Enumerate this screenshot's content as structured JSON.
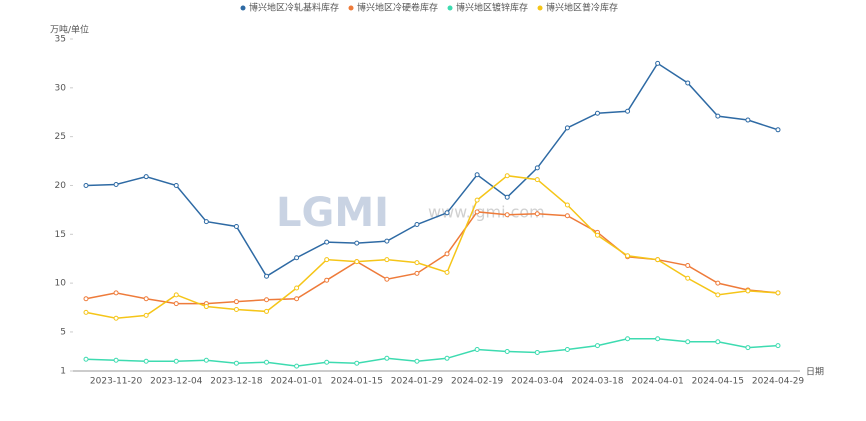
{
  "chart_data": {
    "type": "line",
    "y_label": "万吨/单位",
    "x_label": "日期",
    "watermark": "LGMI",
    "watermark_url": "www.lgmi.com",
    "categories": [
      null,
      "2023-11-20",
      null,
      "2023-12-04",
      null,
      "2023-12-18",
      null,
      "2024-01-01",
      null,
      "2024-01-15",
      null,
      "2024-01-29",
      null,
      "2024-02-19",
      null,
      "2024-03-04",
      null,
      "2024-03-18",
      null,
      "2024-04-01",
      null,
      "2024-04-15",
      null,
      "2024-04-29"
    ],
    "ylim": [
      1,
      35
    ],
    "yticks": [
      1,
      5,
      10,
      15,
      20,
      25,
      30,
      35
    ],
    "series": [
      {
        "name": "博兴地区冷轧基料库存",
        "color": "#2e6aa4",
        "values": [
          20.0,
          20.1,
          20.9,
          20.0,
          16.3,
          15.8,
          10.7,
          12.6,
          14.2,
          14.1,
          14.3,
          16.0,
          17.2,
          21.1,
          18.8,
          21.8,
          25.9,
          27.4,
          27.6,
          32.5,
          30.5,
          27.1,
          26.7,
          25.7
        ]
      },
      {
        "name": "博兴地区冷硬卷库存",
        "color": "#ee7b3a",
        "values": [
          8.4,
          9.0,
          8.4,
          7.9,
          7.9,
          8.1,
          8.3,
          8.4,
          10.3,
          12.2,
          10.4,
          11.0,
          13.0,
          17.3,
          17.0,
          17.1,
          16.9,
          15.2,
          12.7,
          12.4,
          11.8,
          10.0,
          9.3,
          9.0
        ]
      },
      {
        "name": "博兴地区镀锌库存",
        "color": "#3ddbb0",
        "values": [
          2.2,
          2.1,
          2.0,
          2.0,
          2.1,
          1.8,
          1.9,
          1.5,
          1.9,
          1.8,
          2.3,
          2.0,
          2.3,
          3.2,
          3.0,
          2.9,
          3.2,
          3.6,
          4.3,
          4.3,
          4.0,
          4.0,
          3.4,
          3.6
        ]
      },
      {
        "name": "博兴地区普冷库存",
        "color": "#f5c518",
        "values": [
          7.0,
          6.4,
          6.7,
          8.8,
          7.6,
          7.3,
          7.1,
          9.5,
          12.4,
          12.2,
          12.4,
          12.1,
          11.1,
          18.5,
          21.0,
          20.6,
          18.0,
          14.9,
          12.8,
          12.4,
          10.5,
          8.8,
          9.2,
          9.0
        ]
      }
    ]
  }
}
